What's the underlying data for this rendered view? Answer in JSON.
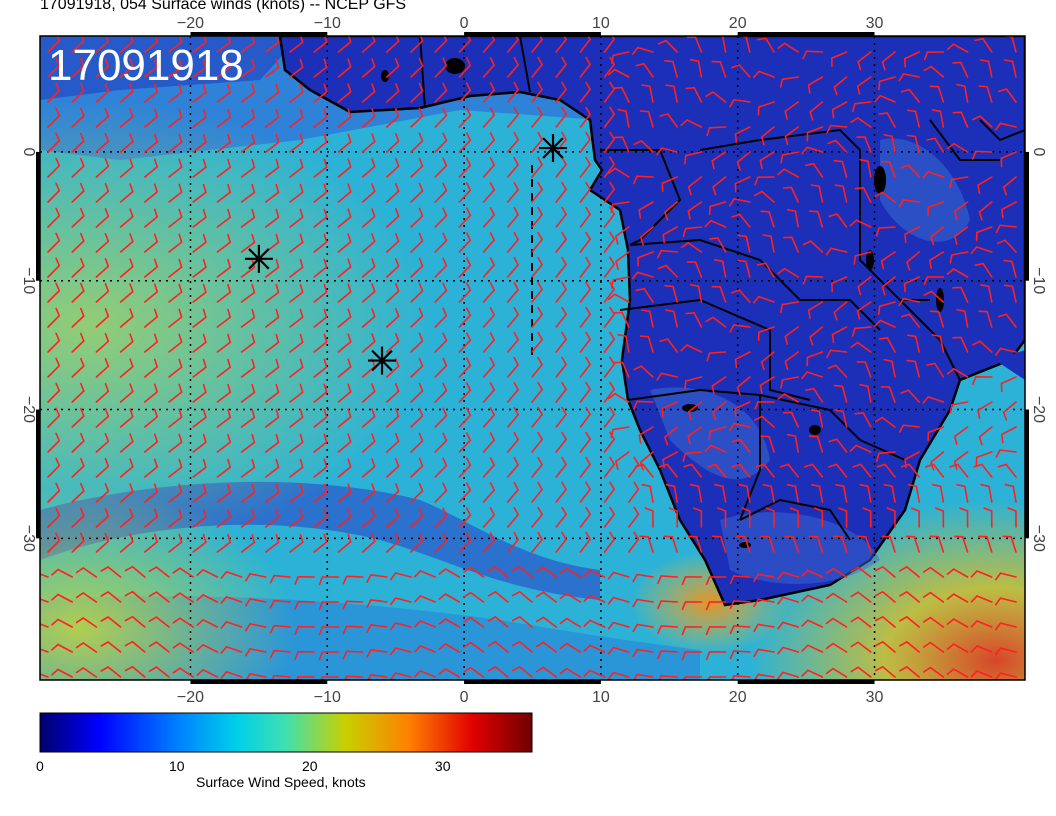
{
  "title": "17091918, 054 Surface winds (knots) -- NCEP GFS",
  "stamp": "17091918",
  "map": {
    "lon_range": [
      -31,
      41
    ],
    "lat_range": [
      -41,
      9
    ],
    "lon_ticks": [
      -20,
      -10,
      0,
      10,
      20,
      30
    ],
    "lat_ticks": [
      0,
      -10,
      -20,
      -30
    ],
    "lon_tick_labels": [
      "−20",
      "−10",
      "0",
      "10",
      "20",
      "30"
    ],
    "lat_tick_labels": [
      "0",
      "−10",
      "−20",
      "−30"
    ],
    "markers": [
      {
        "lon": 6.5,
        "lat": 0.3
      },
      {
        "lon": -15.0,
        "lat": -8.3
      },
      {
        "lon": -6.0,
        "lat": -16.2
      }
    ],
    "colors": {
      "land": "#1c2fb8",
      "ocean_calm": "#2f6ad6",
      "ocean_mid": "#26b6d8",
      "ocean_high": "#c9d63a",
      "barb": "#ff2020",
      "coast": "#000000"
    }
  },
  "colorbar": {
    "title": "Surface Wind Speed, knots",
    "ticks": [
      {
        "value": 0,
        "label": "0"
      },
      {
        "value": 10,
        "label": "10"
      },
      {
        "value": 20,
        "label": "20"
      },
      {
        "value": 30,
        "label": "30"
      }
    ],
    "range": [
      0,
      37
    ],
    "stops": [
      "#00006e",
      "#0000ff",
      "#0080ff",
      "#00d0e8",
      "#40e0b0",
      "#c8d000",
      "#ff8000",
      "#e00000",
      "#700000"
    ]
  }
}
